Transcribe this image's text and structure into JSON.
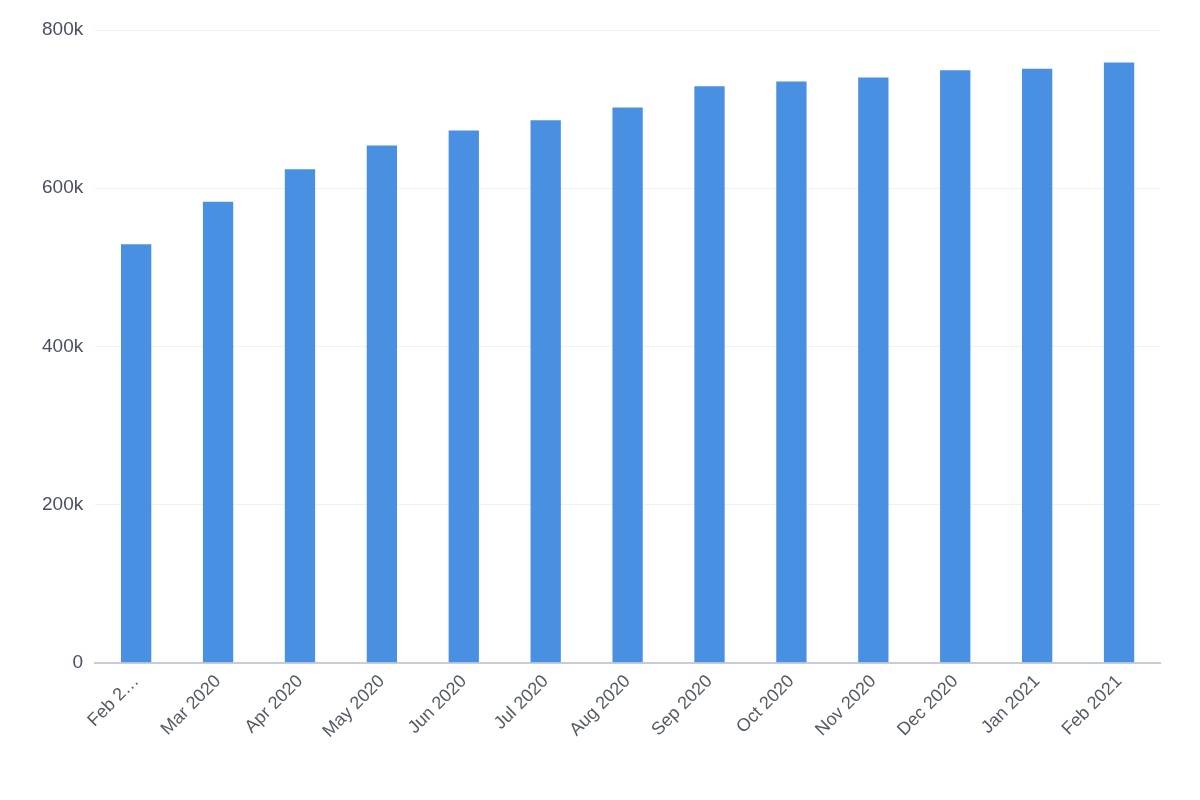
{
  "chart_data": {
    "type": "bar",
    "categories": [
      "Feb 2…",
      "Mar 2020",
      "Apr 2020",
      "May 2020",
      "Jun 2020",
      "Jul 2020",
      "Aug 2020",
      "Sep 2020",
      "Oct 2020",
      "Nov 2020",
      "Dec 2020",
      "Jan 2021",
      "Feb 2021"
    ],
    "values": [
      529000,
      583000,
      624000,
      654000,
      673000,
      686000,
      702000,
      729000,
      735000,
      740000,
      749000,
      751000,
      759000
    ],
    "color": "#4a90e2",
    "ylim": [
      0,
      800000
    ],
    "yticks": [
      {
        "value": 0,
        "label": "0"
      },
      {
        "value": 200000,
        "label": "200k"
      },
      {
        "value": 400000,
        "label": "400k"
      },
      {
        "value": 600000,
        "label": "600k"
      },
      {
        "value": 800000,
        "label": "800k"
      }
    ],
    "grid": "y"
  }
}
